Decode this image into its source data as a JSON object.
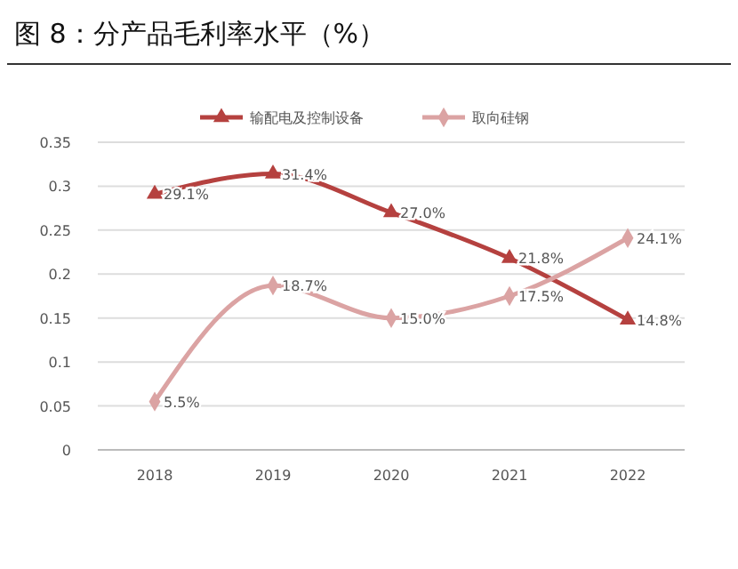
{
  "chart_data": {
    "type": "line",
    "title": "图 8：分产品毛利率水平（%）",
    "categories": [
      "2018",
      "2019",
      "2020",
      "2021",
      "2022"
    ],
    "series": [
      {
        "name": "输配电及控制设备",
        "color": "#b5413f",
        "marker": "triangle",
        "values": [
          0.291,
          0.314,
          0.27,
          0.218,
          0.148
        ],
        "value_labels": [
          "29.1%",
          "31.4%",
          "27.0%",
          "21.8%",
          "14.8%"
        ]
      },
      {
        "name": "取向硅钢",
        "color": "#dba3a3",
        "marker": "diamond",
        "values": [
          0.055,
          0.187,
          0.15,
          0.175,
          0.241
        ],
        "value_labels": [
          "5.5%",
          "18.7%",
          "15.0%",
          "17.5%",
          "24.1%"
        ]
      }
    ],
    "ylim": [
      0,
      0.35
    ],
    "yticks": [
      0,
      0.05,
      0.1,
      0.15,
      0.2,
      0.25,
      0.3,
      0.35
    ],
    "grid": "y",
    "legend": "top"
  }
}
